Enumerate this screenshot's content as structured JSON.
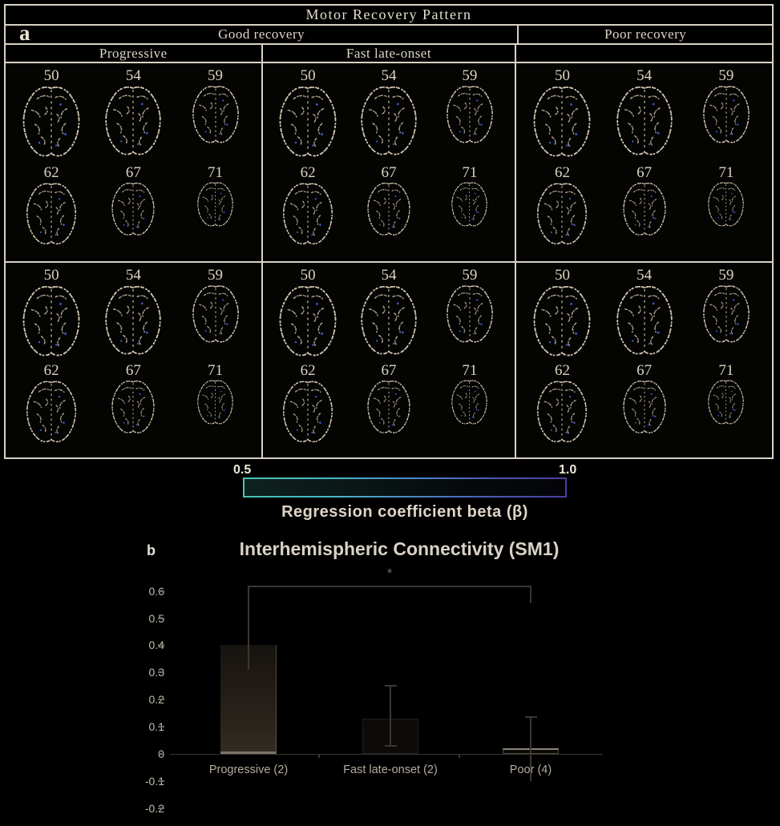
{
  "figure": {
    "panel_label_a": "a",
    "panel_label_b": "b",
    "table_title": "Motor Recovery Pattern",
    "groups": [
      {
        "label": "Good recovery"
      },
      {
        "label": "Poor recovery"
      }
    ],
    "subgroups": [
      "Progressive",
      "Fast late-onset",
      ""
    ],
    "slice_labels": [
      "50",
      "54",
      "59",
      "62",
      "67",
      "71"
    ],
    "panels": [
      {
        "group": "Good recovery",
        "subgroup": "Progressive",
        "row": 1
      },
      {
        "group": "Good recovery",
        "subgroup": "Fast late-onset",
        "row": 1
      },
      {
        "group": "Poor recovery",
        "subgroup": "",
        "row": 1
      },
      {
        "group": "Good recovery",
        "subgroup": "Progressive",
        "row": 2
      },
      {
        "group": "Good recovery",
        "subgroup": "Fast late-onset",
        "row": 2
      },
      {
        "group": "Poor recovery",
        "subgroup": "",
        "row": 2
      }
    ]
  },
  "colorbar": {
    "min_label": "0.5",
    "max_label": "1.0",
    "caption": "Regression coefficient beta (β)",
    "left_color": "#46c4b4",
    "right_color": "#4a3da0"
  },
  "chart_data": {
    "type": "bar",
    "title": "Interhemispheric Connectivity (SM1)",
    "categories": [
      "Progressive (2)",
      "Fast late-onset (2)",
      "Poor (4)"
    ],
    "values": [
      0.4,
      0.13,
      0.02
    ],
    "error_low": [
      0.31,
      0.03,
      -0.065
    ],
    "error_high": [
      0.49,
      0.25,
      0.135
    ],
    "yticks": [
      0.6,
      0.5,
      0.4,
      0.3,
      0.2,
      0.1,
      0,
      -0.1,
      -0.2
    ],
    "ylim": [
      -0.25,
      0.65
    ],
    "xlabel": "",
    "ylabel": "",
    "grid": false,
    "legend": false,
    "significance": {
      "label": "*",
      "between": [
        "Progressive (2)",
        "Poor (4)"
      ],
      "y": 0.62
    }
  }
}
